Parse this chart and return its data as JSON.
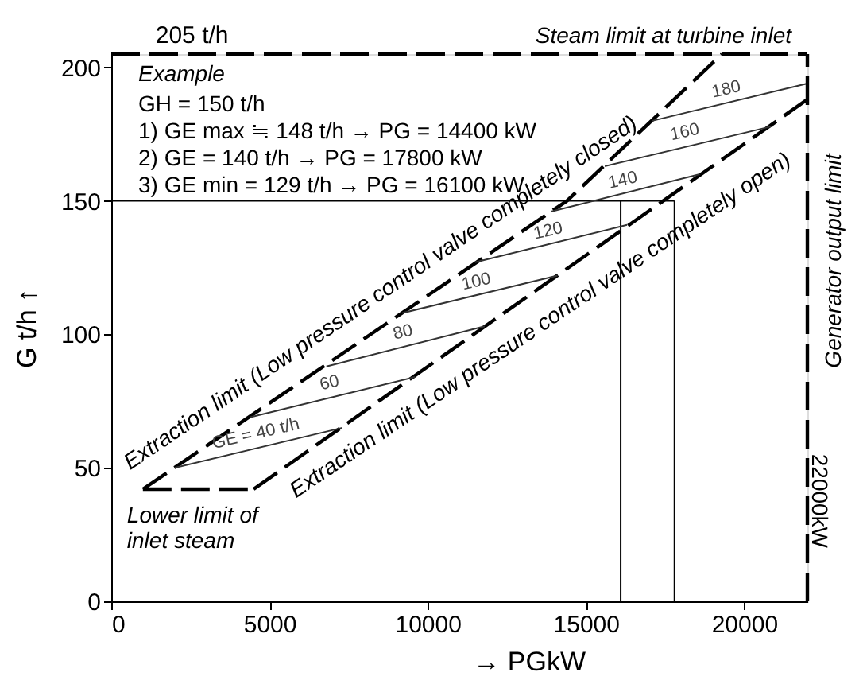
{
  "chart_data": {
    "type": "line",
    "xlabel": "→ PGkW",
    "ylabel": "G t/h ↑",
    "xlim": [
      0,
      22000
    ],
    "ylim": [
      0,
      205
    ],
    "xticks": [
      0,
      5000,
      10000,
      15000,
      20000
    ],
    "yticks": [
      0,
      50,
      100,
      150,
      200
    ],
    "grid": false,
    "marker": "none",
    "series": [
      {
        "color": "#000000",
        "line_style": "dashed",
        "x": [
          1000,
          14400,
          19300
        ],
        "values": [
          42,
          150,
          205
        ]
      },
      {
        "color": "#000000",
        "line_style": "dashed",
        "x": [
          4500,
          22000
        ],
        "values": [
          42,
          188
        ]
      },
      {
        "color": "#000000",
        "line_style": "dashed",
        "x": [
          1000,
          4500
        ],
        "values": [
          42,
          42
        ]
      },
      {
        "color": "#000000",
        "line_style": "solid",
        "x": [
          0,
          17800
        ],
        "values": [
          150,
          150
        ]
      },
      {
        "color": "#000000",
        "line_style": "solid",
        "x": [
          16100,
          16100
        ],
        "values": [
          0,
          150
        ]
      },
      {
        "color": "#000000",
        "line_style": "solid",
        "x": [
          17800,
          17800
        ],
        "values": [
          0,
          150
        ]
      },
      {
        "color": "#333333",
        "line_style": "solid",
        "x": [
          2000,
          7300
        ],
        "values": [
          50,
          65
        ]
      },
      {
        "color": "#333333",
        "line_style": "solid",
        "x": [
          4400,
          9600
        ],
        "values": [
          69,
          84
        ]
      },
      {
        "color": "#333333",
        "line_style": "solid",
        "x": [
          6800,
          11800
        ],
        "values": [
          88,
          103
        ]
      },
      {
        "color": "#333333",
        "line_style": "solid",
        "x": [
          9200,
          14100
        ],
        "values": [
          108,
          122
        ]
      },
      {
        "color": "#333333",
        "line_style": "solid",
        "x": [
          11500,
          16300
        ],
        "values": [
          127,
          141
        ]
      },
      {
        "color": "#333333",
        "line_style": "solid",
        "x": [
          13900,
          18600
        ],
        "values": [
          146,
          160
        ]
      },
      {
        "color": "#333333",
        "line_style": "solid",
        "x": [
          15600,
          20900
        ],
        "values": [
          163,
          178
        ]
      },
      {
        "color": "#333333",
        "line_style": "solid",
        "x": [
          17100,
          22000
        ],
        "values": [
          180,
          194
        ]
      }
    ],
    "ref_lines": [
      {
        "axis": "y",
        "value": 205,
        "label": "Steam limit at turbine inlet",
        "color": "#000000",
        "line_style": "dashed"
      },
      {
        "axis": "x",
        "value": 22000,
        "label": "Generator output limit",
        "color": "#000000",
        "line_style": "dashed"
      }
    ],
    "annotations": [
      "Example",
      "GH = 150 t/h",
      "1)  GE max ≒ 148 t/h → PG = 14400 kW",
      "2)  GE        = 140 t/h → PG = 17800 kW",
      "3)  GE min = 129 t/h → PG = 16100 kW",
      {
        "text": "205 t/h",
        "x": 1400,
        "y": 205
      },
      {
        "text": "22000kW",
        "x": 22000,
        "y": 34
      },
      {
        "text": "Extraction limit (Low pressure control valve completely closed)",
        "x": 9000,
        "y": 107
      },
      {
        "text": "Extraction limit (Low pressure control valve completely open)",
        "x": 12700,
        "y": 110
      },
      {
        "text": "Lower limit of\ninlet steam",
        "x": 1000,
        "y": 42
      },
      {
        "text": "GE = 40 t/h",
        "x": 4660,
        "y": 58
      },
      {
        "text": "60",
        "x": 6990,
        "y": 77
      },
      {
        "text": "80",
        "x": 9310,
        "y": 96
      },
      {
        "text": "100",
        "x": 11630,
        "y": 115
      },
      {
        "text": "120",
        "x": 13900,
        "y": 134
      },
      {
        "text": "140",
        "x": 16260,
        "y": 153
      },
      {
        "text": "160",
        "x": 18220,
        "y": 171
      },
      {
        "text": "180",
        "x": 19530,
        "y": 187
      }
    ]
  }
}
